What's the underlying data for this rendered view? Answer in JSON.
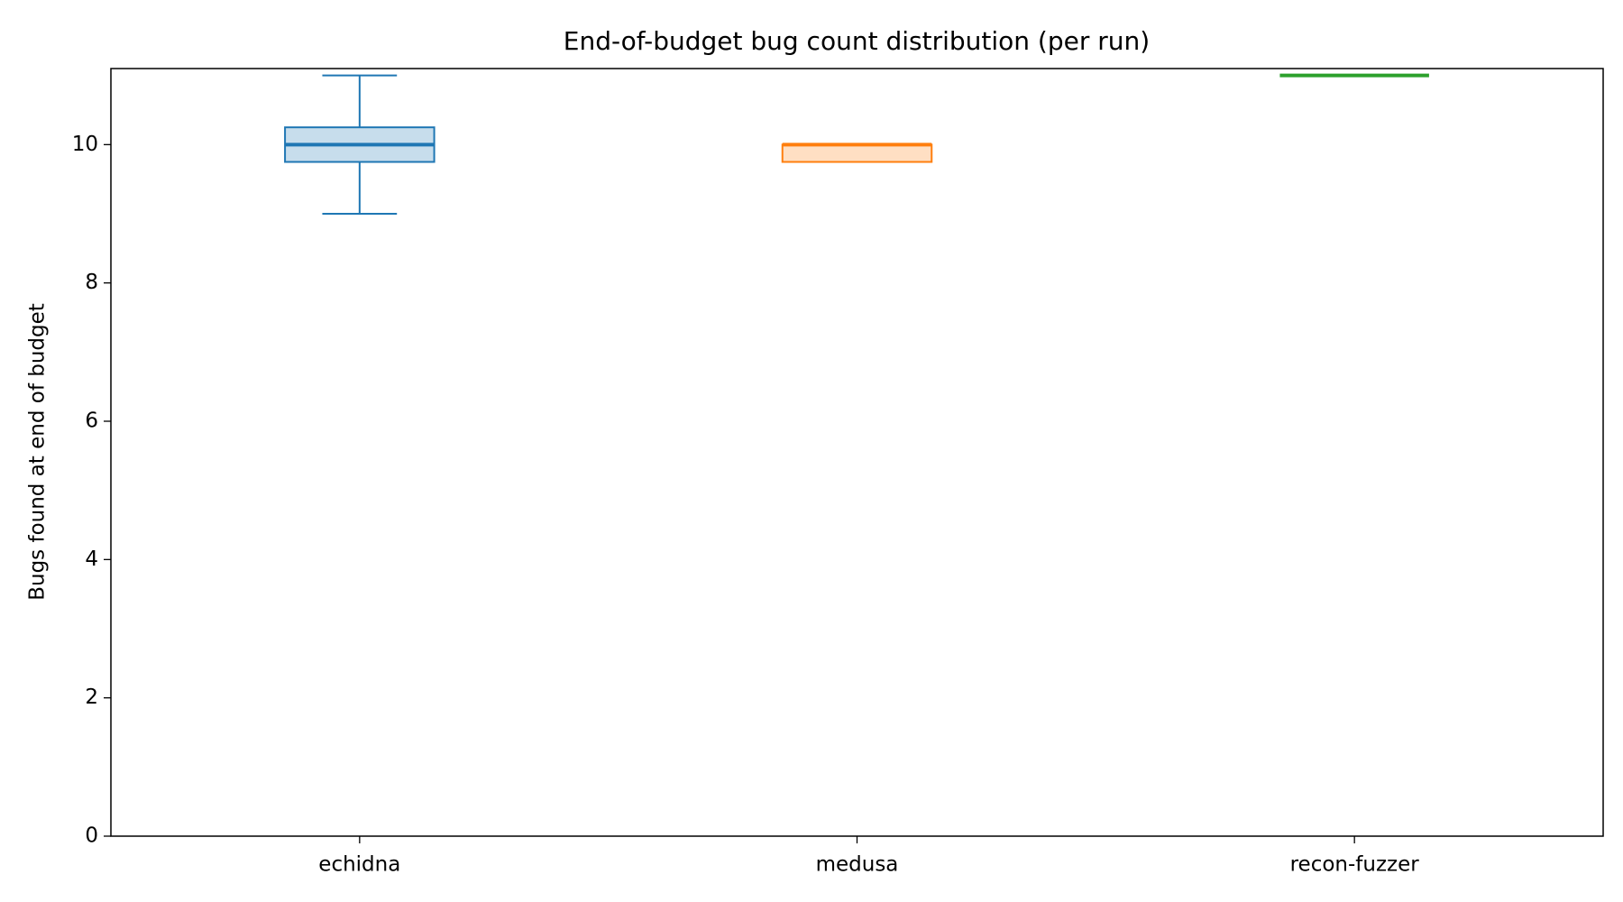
{
  "chart_data": {
    "type": "box",
    "title": "End-of-budget bug count distribution (per run)",
    "y_label": "Bugs found at end of budget",
    "categories": [
      "echidna",
      "medusa",
      "recon-fuzzer"
    ],
    "series": [
      {
        "name": "echidna",
        "color": "#1f77b4",
        "min": 9,
        "q1": 9.75,
        "median": 10,
        "q3": 10.25,
        "max": 11
      },
      {
        "name": "medusa",
        "color": "#ff7f0e",
        "min": 9.75,
        "q1": 9.75,
        "median": 10,
        "q3": 10,
        "max": 10
      },
      {
        "name": "recon-fuzzer",
        "color": "#2ca02c",
        "min": 11,
        "q1": 11,
        "median": 11,
        "q3": 11,
        "max": 11
      }
    ],
    "ylim": [
      0,
      11.1
    ],
    "yticks": [
      0,
      2,
      4,
      6,
      8,
      10
    ],
    "grid": false
  }
}
